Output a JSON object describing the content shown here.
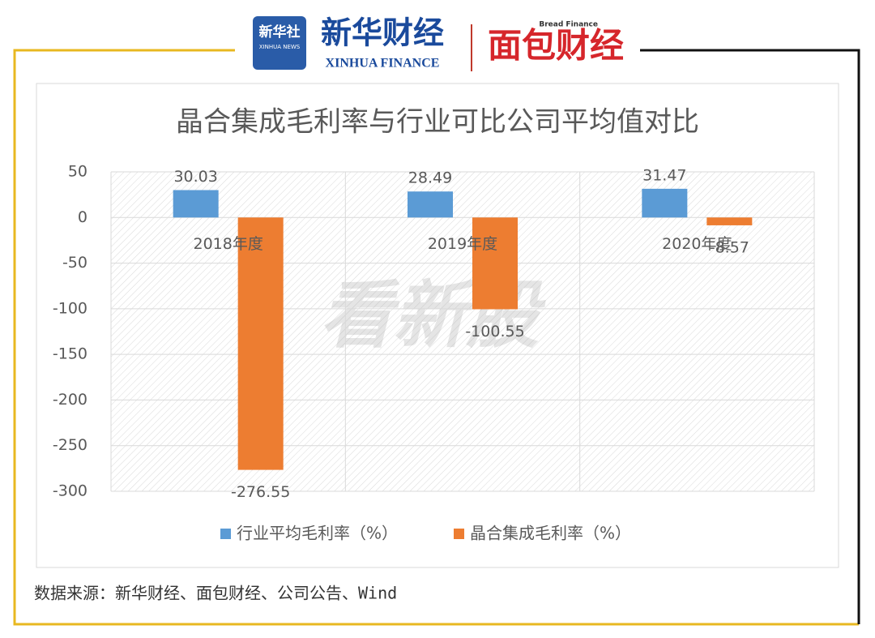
{
  "header": {
    "logo1_cn": "新华社",
    "logo1_en": "XINHUA NEWS",
    "logo2_cn": "新华财经",
    "logo2_en": "XINHUA FINANCE",
    "logo3_en": "Bread Finance",
    "logo3_cn": "面包财经"
  },
  "watermark": "看新股",
  "chart_data": {
    "type": "bar",
    "title": "晶合集成毛利率与行业可比公司平均值对比",
    "categories": [
      "2018年度",
      "2019年度",
      "2020年度"
    ],
    "series": [
      {
        "name": "行业平均毛利率（%）",
        "color": "#5b9bd5",
        "values": [
          30.03,
          28.49,
          31.47
        ]
      },
      {
        "name": "晶合集成毛利率（%）",
        "color": "#ed7d31",
        "values": [
          -276.55,
          -100.55,
          -8.57
        ]
      }
    ],
    "ylim": [
      -300,
      50
    ],
    "yticks": [
      50,
      0,
      -50,
      -100,
      -150,
      -200,
      -250,
      -300
    ],
    "grid": true,
    "legend": "bottom"
  },
  "source": "数据来源：新华财经、面包财经、公司公告、Wind"
}
